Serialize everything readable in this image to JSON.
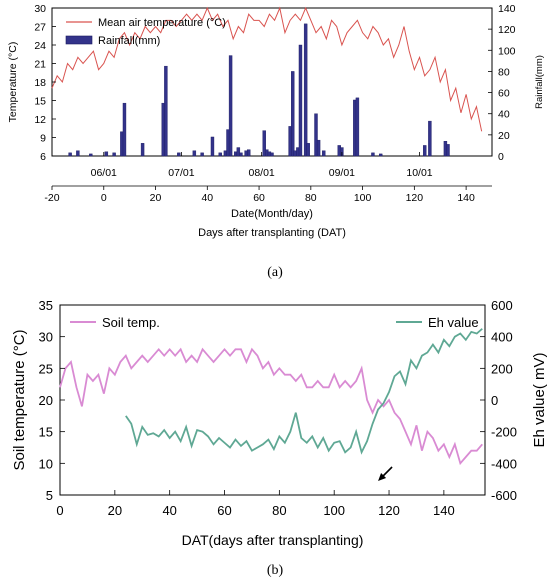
{
  "panel_labels": {
    "a": "(a)",
    "b": "(b)"
  },
  "chart_data": [
    {
      "type": "line+bar",
      "panel": "a",
      "ylabel_left": "Temperature (°C)",
      "ylabel_right": "Rainfall(mm)",
      "xlabel_dates": "Date(Month/day)",
      "xlabel_dat": "Days after transplanting (DAT)",
      "ylim_left": [
        6,
        30
      ],
      "yticks_left": [
        6,
        9,
        12,
        15,
        18,
        21,
        24,
        27,
        30
      ],
      "ylim_right": [
        0,
        140
      ],
      "yticks_right": [
        0,
        20,
        40,
        60,
        80,
        100,
        120,
        140
      ],
      "xlim": [
        -20,
        150
      ],
      "xticks": [
        -20,
        0,
        20,
        40,
        60,
        80,
        100,
        120,
        140
      ],
      "date_ticks": [
        {
          "label": "06/01",
          "x": 0
        },
        {
          "label": "07/01",
          "x": 30
        },
        {
          "label": "08/01",
          "x": 61
        },
        {
          "label": "09/01",
          "x": 92
        },
        {
          "label": "10/01",
          "x": 122
        }
      ],
      "legend": [
        "Mean air temperature (°C)",
        "Rainfall(mm)"
      ],
      "legend_position": "top-left",
      "colors": {
        "temperature": "#d9534f",
        "rainfall": "#33338a"
      },
      "temperature": {
        "name": "Mean air temperature (°C)",
        "x": [
          -20,
          -18,
          -16,
          -14,
          -12,
          -10,
          -8,
          -6,
          -4,
          -2,
          0,
          2,
          4,
          6,
          8,
          10,
          12,
          14,
          16,
          18,
          20,
          22,
          24,
          26,
          28,
          30,
          32,
          34,
          36,
          38,
          40,
          42,
          44,
          46,
          48,
          50,
          52,
          54,
          56,
          58,
          60,
          62,
          64,
          66,
          68,
          70,
          72,
          74,
          76,
          78,
          80,
          82,
          84,
          86,
          88,
          90,
          92,
          94,
          96,
          98,
          100,
          102,
          104,
          106,
          108,
          110,
          112,
          114,
          116,
          118,
          120,
          122,
          124,
          126,
          128,
          130,
          132,
          134,
          136,
          138,
          140,
          142,
          144,
          146
        ],
        "y": [
          17,
          19,
          18,
          21,
          20,
          22,
          21,
          22,
          23,
          20,
          21,
          23,
          22,
          25,
          26,
          24,
          26,
          25,
          27,
          26,
          27,
          26,
          28,
          28,
          27,
          28,
          29,
          28,
          29,
          28,
          30,
          28,
          29,
          27,
          28,
          25,
          27,
          26,
          29,
          28,
          28,
          27,
          29,
          28,
          30,
          26,
          28,
          29,
          28,
          30,
          28,
          26,
          27,
          25,
          28,
          27,
          24,
          26,
          27,
          28,
          26,
          25,
          27,
          26,
          24,
          25,
          22,
          24,
          27,
          23,
          20,
          22,
          19,
          20,
          22,
          18,
          20,
          15,
          17,
          13,
          16,
          12,
          14,
          10
        ]
      },
      "rainfall": {
        "name": "Rainfall(mm)",
        "x": [
          -13,
          -10,
          -5,
          1,
          4,
          7,
          8,
          15,
          23,
          24,
          29,
          35,
          38,
          42,
          45,
          47,
          48,
          49,
          51,
          52,
          53,
          55,
          56,
          62,
          63,
          64,
          65,
          72,
          73,
          74,
          75,
          76,
          78,
          79,
          82,
          83,
          85,
          91,
          92,
          97,
          98,
          104,
          107,
          124,
          126,
          132,
          133
        ],
        "y": [
          3,
          5,
          2,
          4,
          3,
          23,
          50,
          12,
          50,
          85,
          3,
          5,
          3,
          18,
          3,
          5,
          25,
          95,
          4,
          8,
          3,
          5,
          6,
          24,
          6,
          4,
          3,
          28,
          80,
          5,
          8,
          105,
          125,
          12,
          40,
          15,
          5,
          10,
          8,
          53,
          55,
          3,
          2,
          10,
          33,
          14,
          11
        ]
      }
    },
    {
      "type": "line",
      "panel": "b",
      "xlabel": "DAT(days after transplanting)",
      "ylabel_left": "Soil temperature (°C)",
      "ylabel_right": "Eh value( mV)",
      "ylim_left": [
        5,
        35
      ],
      "yticks_left": [
        5,
        10,
        15,
        20,
        25,
        30,
        35
      ],
      "ylim_right": [
        -600,
        600
      ],
      "yticks_right": [
        -600,
        -400,
        -200,
        0,
        200,
        400,
        600
      ],
      "xlim": [
        0,
        155
      ],
      "xticks": [
        0,
        20,
        40,
        60,
        80,
        100,
        120,
        140
      ],
      "colors": {
        "soil": "#d98bd3",
        "eh": "#5fa894"
      },
      "legend_position": "top-left and top-right",
      "annotation": "arrow near x≈113",
      "soil_temp": {
        "name": "Soil temp.",
        "x": [
          0,
          2,
          4,
          6,
          8,
          10,
          12,
          14,
          16,
          18,
          20,
          22,
          24,
          26,
          28,
          30,
          32,
          34,
          36,
          38,
          40,
          42,
          44,
          46,
          48,
          50,
          52,
          54,
          56,
          58,
          60,
          62,
          64,
          66,
          68,
          70,
          72,
          74,
          76,
          78,
          80,
          82,
          84,
          86,
          88,
          90,
          92,
          94,
          96,
          98,
          100,
          102,
          104,
          106,
          108,
          110,
          112,
          114,
          116,
          118,
          120,
          122,
          124,
          126,
          128,
          130,
          132,
          134,
          136,
          138,
          140,
          142,
          144,
          146,
          148,
          150,
          152,
          154
        ],
        "y": [
          22,
          25,
          26,
          22,
          19,
          24,
          23,
          24,
          21,
          25,
          24,
          26,
          27,
          25,
          26,
          27,
          26,
          27,
          28,
          27,
          28,
          27,
          28,
          26,
          27,
          26,
          28,
          27,
          26,
          27,
          28,
          27,
          28,
          28,
          26,
          28,
          27,
          25,
          26,
          24,
          25,
          24,
          24,
          23,
          24,
          22,
          22,
          23,
          22,
          22,
          24,
          22,
          23,
          22,
          23,
          25,
          20,
          18,
          20,
          19,
          20,
          18,
          17,
          15,
          13,
          16,
          12,
          15,
          14,
          12,
          13,
          11,
          13,
          10,
          11,
          12,
          12,
          13
        ]
      },
      "eh": {
        "name": "Eh value",
        "x": [
          24,
          26,
          28,
          30,
          32,
          34,
          36,
          38,
          40,
          42,
          44,
          46,
          48,
          50,
          52,
          54,
          56,
          58,
          60,
          62,
          64,
          66,
          68,
          70,
          72,
          74,
          76,
          78,
          80,
          82,
          84,
          86,
          88,
          90,
          92,
          94,
          96,
          98,
          100,
          102,
          104,
          106,
          108,
          110,
          112,
          114,
          116,
          118,
          120,
          122,
          124,
          126,
          128,
          130,
          132,
          134,
          136,
          138,
          140,
          142,
          144,
          146,
          148,
          150,
          152,
          154
        ],
        "y": [
          -100,
          -150,
          -280,
          -170,
          -220,
          -210,
          -230,
          -190,
          -240,
          -200,
          -260,
          -170,
          -290,
          -190,
          -200,
          -230,
          -280,
          -240,
          -270,
          -300,
          -250,
          -290,
          -260,
          -320,
          -300,
          -280,
          -250,
          -310,
          -230,
          -270,
          -200,
          -80,
          -240,
          -270,
          -230,
          -300,
          -240,
          -320,
          -270,
          -260,
          -330,
          -300,
          -200,
          -330,
          -260,
          -150,
          -60,
          -20,
          50,
          150,
          180,
          100,
          250,
          200,
          280,
          300,
          350,
          300,
          380,
          340,
          400,
          420,
          380,
          430,
          420,
          450
        ]
      }
    }
  ]
}
